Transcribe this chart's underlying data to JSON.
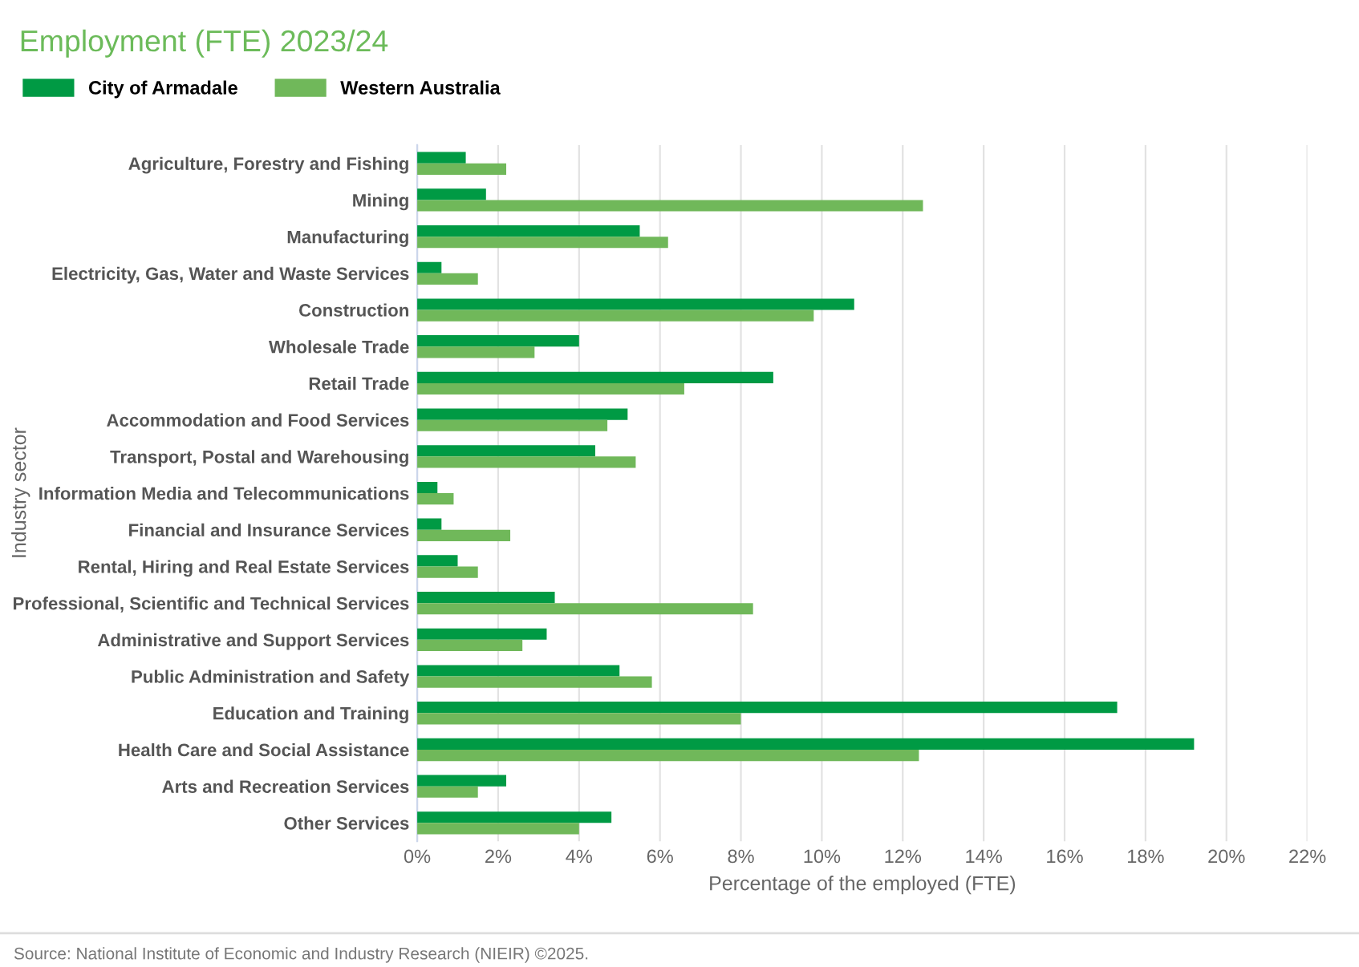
{
  "chart_data": {
    "type": "bar",
    "orientation": "horizontal",
    "title": "Employment (FTE) 2023/24",
    "xlabel": "Percentage of the employed (FTE)",
    "ylabel": "Industry sector",
    "categories": [
      "Agriculture, Forestry and Fishing",
      "Mining",
      "Manufacturing",
      "Electricity, Gas, Water and Waste Services",
      "Construction",
      "Wholesale Trade",
      "Retail Trade",
      "Accommodation and Food Services",
      "Transport, Postal and Warehousing",
      "Information Media and Telecommunications",
      "Financial and Insurance Services",
      "Rental, Hiring and Real Estate Services",
      "Professional, Scientific and Technical Services",
      "Administrative and Support Services",
      "Public Administration and Safety",
      "Education and Training",
      "Health Care and Social Assistance",
      "Arts and Recreation Services",
      "Other Services"
    ],
    "series": [
      {
        "name": "City of Armadale",
        "color": "#009a44",
        "values": [
          1.2,
          1.7,
          5.5,
          0.6,
          10.8,
          4.0,
          8.8,
          5.2,
          4.4,
          0.5,
          0.6,
          1.0,
          3.4,
          3.2,
          5.0,
          17.3,
          19.2,
          2.2,
          4.8
        ]
      },
      {
        "name": "Western Australia",
        "color": "#70b85a",
        "values": [
          2.2,
          12.5,
          6.2,
          1.5,
          9.8,
          2.9,
          6.6,
          4.7,
          5.4,
          0.9,
          2.3,
          1.5,
          8.3,
          2.6,
          5.8,
          8.0,
          12.4,
          1.5,
          4.0
        ]
      }
    ],
    "xlim": [
      0,
      22
    ],
    "xticks": [
      {
        "value": 0,
        "label": "0%"
      },
      {
        "value": 2,
        "label": "2%"
      },
      {
        "value": 4,
        "label": "4%"
      },
      {
        "value": 6,
        "label": "6%"
      },
      {
        "value": 8,
        "label": "8%"
      },
      {
        "value": 10,
        "label": "10%"
      },
      {
        "value": 12,
        "label": "12%"
      },
      {
        "value": 14,
        "label": "14%"
      },
      {
        "value": 16,
        "label": "16%"
      },
      {
        "value": 18,
        "label": "18%"
      },
      {
        "value": 20,
        "label": "20%"
      },
      {
        "value": 22,
        "label": "22%"
      }
    ],
    "grid": "x",
    "legend": "top left",
    "annotations": [
      "Source: National Institute of Economic and Industry Research (NIEIR) ©2025."
    ]
  }
}
